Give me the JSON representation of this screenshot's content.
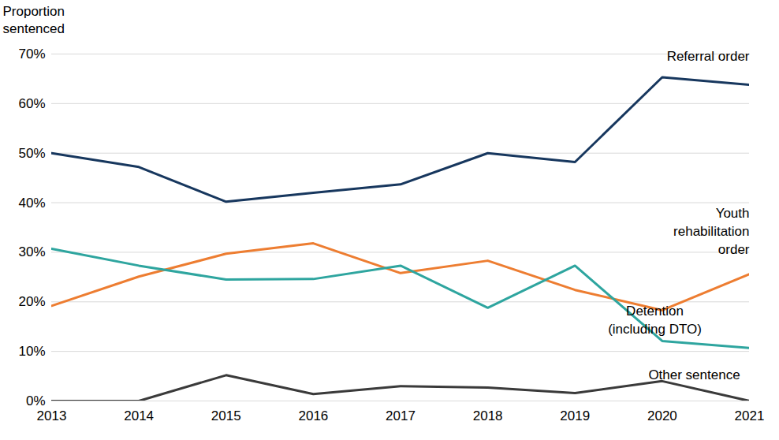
{
  "chart_data": {
    "type": "line",
    "y_label": "Proportion sentenced",
    "x": [
      2013,
      2014,
      2015,
      2016,
      2017,
      2018,
      2019,
      2020,
      2021
    ],
    "xlim": [
      2013,
      2021
    ],
    "xticks": [
      2013,
      2014,
      2015,
      2016,
      2017,
      2018,
      2019,
      2020,
      2021
    ],
    "ylim": [
      0,
      70
    ],
    "yticks": [
      {
        "value": 0,
        "label": "0%"
      },
      {
        "value": 10,
        "label": "10%"
      },
      {
        "value": 20,
        "label": "20%"
      },
      {
        "value": 30,
        "label": "30%"
      },
      {
        "value": 40,
        "label": "40%"
      },
      {
        "value": 50,
        "label": "50%"
      },
      {
        "value": 60,
        "label": "60%"
      },
      {
        "value": 70,
        "label": "70%"
      }
    ],
    "grid": true,
    "series": [
      {
        "name": "Referral order",
        "color": "#17375e",
        "values": [
          50.0,
          47.2,
          40.2,
          42.0,
          43.7,
          50.0,
          48.2,
          65.3,
          63.8
        ]
      },
      {
        "name": "Youth\nrehabilitation\norder",
        "color": "#ed7d31",
        "values": [
          19.2,
          25.1,
          29.7,
          31.8,
          25.8,
          28.3,
          22.4,
          18.3,
          25.6
        ]
      },
      {
        "name": "Detention\n(including DTO)",
        "color": "#2ea59f",
        "values": [
          30.7,
          27.3,
          24.5,
          24.6,
          27.3,
          18.8,
          27.3,
          12.1,
          10.7
        ]
      },
      {
        "name": "Other sentence",
        "color": "#3a3a3a",
        "values": [
          0,
          0,
          5.2,
          1.4,
          3.0,
          2.7,
          1.6,
          4.0,
          0
        ]
      }
    ]
  }
}
